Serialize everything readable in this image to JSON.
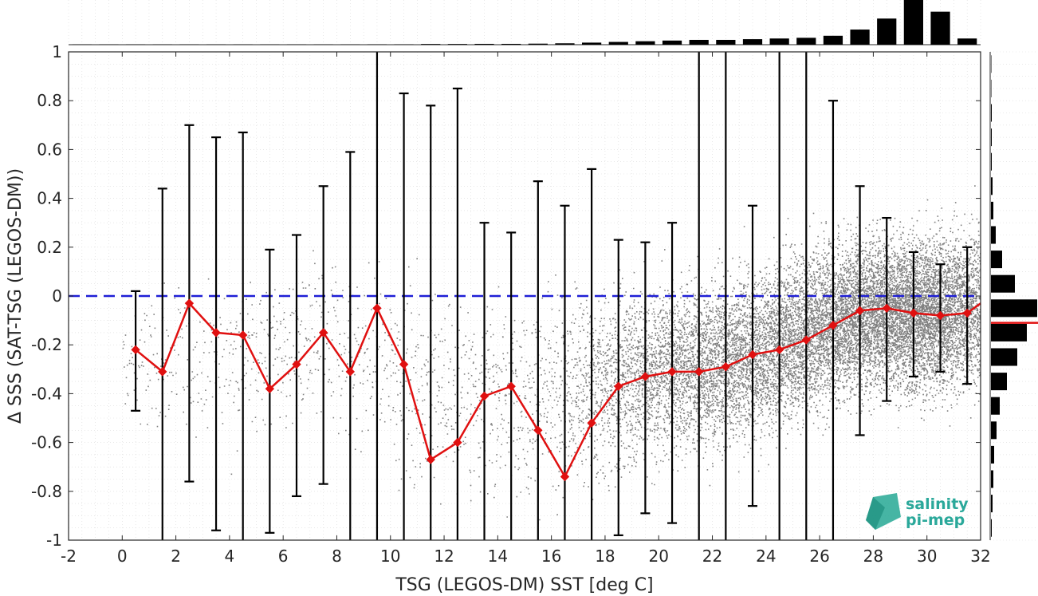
{
  "chart_data": {
    "type": "scatter",
    "xlabel": "TSG (LEGOS-DM) SST [deg C]",
    "ylabel": "Δ SSS (SAT-TSG (LEGOS-DM))",
    "xlim": [
      -2,
      32
    ],
    "ylim": [
      -1,
      1
    ],
    "xticks": [
      -2,
      0,
      2,
      4,
      6,
      8,
      10,
      12,
      14,
      16,
      18,
      20,
      22,
      24,
      26,
      28,
      30,
      32
    ],
    "xtick_labels": [
      "-2",
      "0",
      "2",
      "4",
      "6",
      "8",
      "10",
      "12",
      "14",
      "16",
      "18",
      "20",
      "22",
      "24",
      "26",
      "28",
      "30",
      "32"
    ],
    "yticks": [
      -1,
      -0.8,
      -0.6,
      -0.4,
      -0.2,
      0,
      0.2,
      0.4,
      0.6,
      0.8,
      1
    ],
    "ytick_labels": [
      "-1",
      "-0.8",
      "-0.6",
      "-0.4",
      "-0.2",
      "0",
      "0.2",
      "0.4",
      "0.6",
      "0.8",
      "1"
    ],
    "grid": true,
    "zero_line": {
      "y": 0,
      "color": "#1f1fd6",
      "style": "dashed"
    },
    "mean_series": {
      "color": "#e01010",
      "marker": "diamond",
      "x": [
        0.5,
        1.5,
        2.5,
        3.5,
        4.5,
        5.5,
        6.5,
        7.5,
        8.5,
        9.5,
        10.5,
        11.5,
        12.5,
        13.5,
        14.5,
        15.5,
        16.5,
        17.5,
        18.5,
        19.5,
        20.5,
        21.5,
        22.5,
        23.5,
        24.5,
        25.5,
        26.5,
        27.5,
        28.5,
        29.5,
        30.5,
        31.5,
        32
      ],
      "y": [
        -0.22,
        -0.31,
        -0.03,
        -0.15,
        -0.16,
        -0.38,
        -0.28,
        -0.15,
        -0.31,
        -0.05,
        -0.28,
        -0.67,
        -0.6,
        -0.41,
        -0.37,
        -0.55,
        -0.74,
        -0.52,
        -0.37,
        -0.33,
        -0.31,
        -0.31,
        -0.29,
        -0.24,
        -0.22,
        -0.18,
        -0.12,
        -0.06,
        -0.05,
        -0.07,
        -0.08,
        -0.07,
        -0.03
      ]
    },
    "error_bars": {
      "color": "#000000",
      "x": [
        0.5,
        1.5,
        2.5,
        3.5,
        4.5,
        5.5,
        6.5,
        7.5,
        8.5,
        9.5,
        10.5,
        11.5,
        12.5,
        13.5,
        14.5,
        15.5,
        16.5,
        17.5,
        18.5,
        19.5,
        20.5,
        21.5,
        22.5,
        23.5,
        24.5,
        25.5,
        26.5,
        27.5,
        28.5,
        29.5,
        30.5,
        31.5
      ],
      "upper": [
        0.02,
        0.44,
        0.7,
        0.65,
        0.67,
        0.19,
        0.25,
        0.45,
        0.59,
        1.0,
        0.83,
        0.78,
        0.85,
        0.3,
        0.26,
        0.47,
        0.37,
        0.52,
        0.23,
        0.22,
        0.3,
        1.0,
        1.0,
        0.37,
        1.0,
        1.0,
        0.8,
        0.45,
        0.32,
        0.18,
        0.13,
        0.2
      ],
      "lower": [
        -0.47,
        -1.0,
        -0.76,
        -0.96,
        -1.0,
        -0.97,
        -0.82,
        -0.77,
        -1.0,
        -1.0,
        -1.0,
        -1.0,
        -1.0,
        -1.0,
        -1.0,
        -1.0,
        -1.0,
        -1.0,
        -0.98,
        -0.89,
        -0.93,
        -1.0,
        -1.0,
        -0.86,
        -1.0,
        -1.0,
        -1.0,
        -0.57,
        -0.43,
        -0.33,
        -0.31,
        -0.36
      ]
    },
    "scatter_cloud": {
      "color": "#808080",
      "note": "dense grey cloud of individual points",
      "density_profile": [
        {
          "x": 0,
          "center": -0.3,
          "spread": 0.35,
          "weight": 0.3
        },
        {
          "x": 4,
          "center": -0.25,
          "spread": 0.4,
          "weight": 0.5
        },
        {
          "x": 8,
          "center": -0.2,
          "spread": 0.45,
          "weight": 0.6
        },
        {
          "x": 12,
          "center": -0.4,
          "spread": 0.5,
          "weight": 0.8
        },
        {
          "x": 16,
          "center": -0.4,
          "spread": 0.5,
          "weight": 1.2
        },
        {
          "x": 18,
          "center": -0.35,
          "spread": 0.45,
          "weight": 3.5
        },
        {
          "x": 20,
          "center": -0.3,
          "spread": 0.4,
          "weight": 6
        },
        {
          "x": 22,
          "center": -0.28,
          "spread": 0.4,
          "weight": 8
        },
        {
          "x": 24,
          "center": -0.22,
          "spread": 0.4,
          "weight": 9
        },
        {
          "x": 26,
          "center": -0.12,
          "spread": 0.4,
          "weight": 11
        },
        {
          "x": 28,
          "center": -0.06,
          "spread": 0.38,
          "weight": 14
        },
        {
          "x": 30,
          "center": -0.07,
          "spread": 0.38,
          "weight": 16
        },
        {
          "x": 32,
          "center": -0.05,
          "spread": 0.38,
          "weight": 8
        }
      ]
    },
    "top_histogram": {
      "bin_centers": [
        -1.5,
        -0.5,
        0.5,
        1.5,
        2.5,
        3.5,
        4.5,
        5.5,
        6.5,
        7.5,
        8.5,
        9.5,
        10.5,
        11.5,
        12.5,
        13.5,
        14.5,
        15.5,
        16.5,
        17.5,
        18.5,
        19.5,
        20.5,
        21.5,
        22.5,
        23.5,
        24.5,
        25.5,
        26.5,
        27.5,
        28.5,
        29.5,
        30.5,
        31.5
      ],
      "counts": [
        0.5,
        0.5,
        0.5,
        0.5,
        0.5,
        0.5,
        0.5,
        0.5,
        0.5,
        0.5,
        0.5,
        0.6,
        0.6,
        1,
        1,
        1.2,
        1.2,
        1.5,
        2,
        3,
        4,
        5,
        6,
        7,
        7,
        8,
        9,
        10,
        13,
        22,
        38,
        65,
        48,
        9
      ]
    },
    "right_histogram": {
      "bin_centers": [
        -0.95,
        -0.85,
        -0.75,
        -0.65,
        -0.55,
        -0.45,
        -0.35,
        -0.25,
        -0.15,
        -0.05,
        0.05,
        0.15,
        0.25,
        0.35,
        0.45,
        0.55,
        0.65,
        0.75,
        0.85,
        0.95
      ],
      "counts": [
        1,
        2,
        3,
        4,
        7,
        11,
        20,
        33,
        45,
        58,
        30,
        14,
        6,
        3,
        2,
        1,
        1,
        1,
        0.5,
        0.5
      ],
      "median_line": {
        "y": -0.11,
        "color": "#e01010"
      }
    }
  },
  "logo": {
    "line1": "salinity",
    "line2": "pi-mep"
  }
}
